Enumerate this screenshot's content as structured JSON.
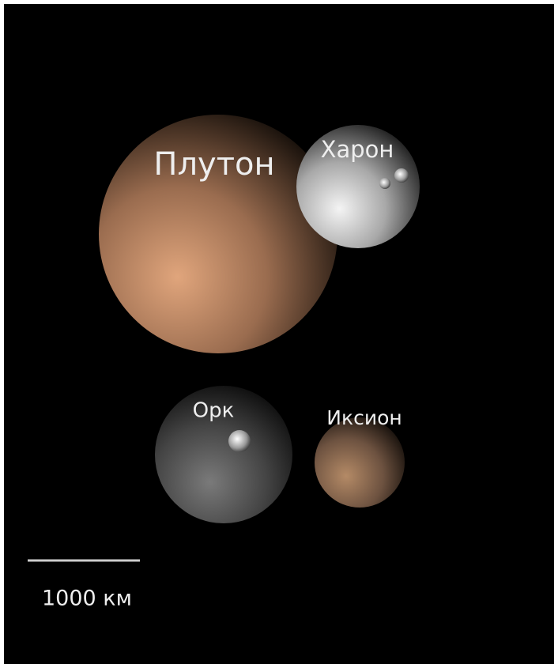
{
  "labels": {
    "pluto": "Плутон",
    "charon": "Харон",
    "orcus": "Орк",
    "ixion": "Иксион"
  },
  "scale": {
    "label": "1000 км"
  }
}
